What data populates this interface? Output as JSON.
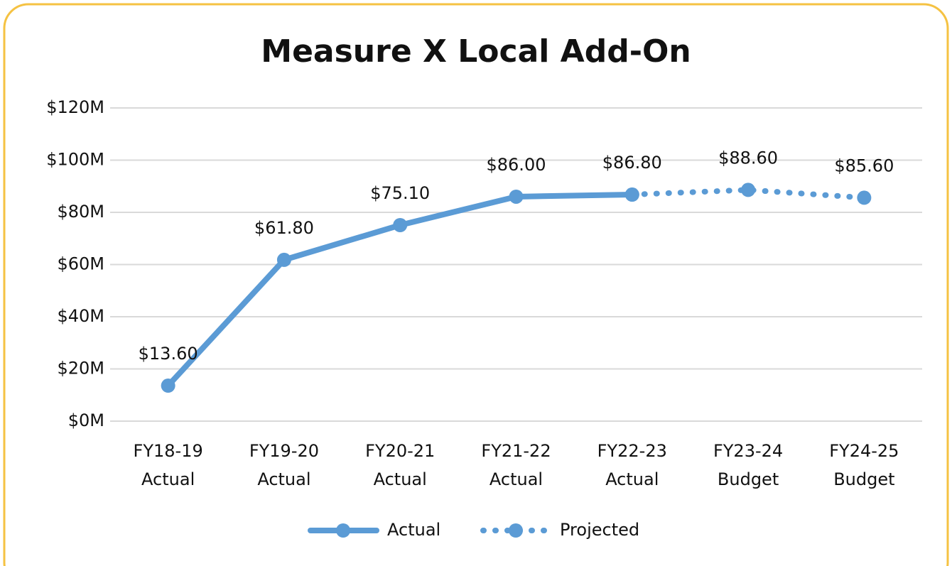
{
  "chart_data": {
    "type": "line",
    "title": "Measure X Local Add-On",
    "categories": [
      [
        "FY18-19",
        "Actual"
      ],
      [
        "FY19-20",
        "Actual"
      ],
      [
        "FY20-21",
        "Actual"
      ],
      [
        "FY21-22",
        "Actual"
      ],
      [
        "FY22-23",
        "Actual"
      ],
      [
        "FY23-24",
        "Budget"
      ],
      [
        "FY24-25",
        "Budget"
      ]
    ],
    "series": [
      {
        "name": "Actual",
        "color": "#5b9bd5",
        "line_style": "solid",
        "values": [
          13.6,
          61.8,
          75.1,
          86.0,
          86.8,
          null,
          null
        ],
        "value_labels": [
          "$13.60",
          "$61.80",
          "$75.10",
          "$86.00",
          "$86.80",
          null,
          null
        ]
      },
      {
        "name": "Projected",
        "color": "#5b9bd5",
        "line_style": "dotted",
        "values": [
          null,
          null,
          null,
          null,
          86.8,
          88.6,
          85.6
        ],
        "value_labels": [
          null,
          null,
          null,
          null,
          null,
          "$88.60",
          "$85.60"
        ]
      }
    ],
    "ylim": [
      0,
      120
    ],
    "yticks": [
      {
        "value": 0,
        "label": "$0M"
      },
      {
        "value": 20,
        "label": "$20M"
      },
      {
        "value": 40,
        "label": "$40M"
      },
      {
        "value": 60,
        "label": "$60M"
      },
      {
        "value": 80,
        "label": "$80M"
      },
      {
        "value": 100,
        "label": "$100M"
      },
      {
        "value": 120,
        "label": "$120M"
      }
    ],
    "grid": true,
    "legend": "bottom"
  }
}
